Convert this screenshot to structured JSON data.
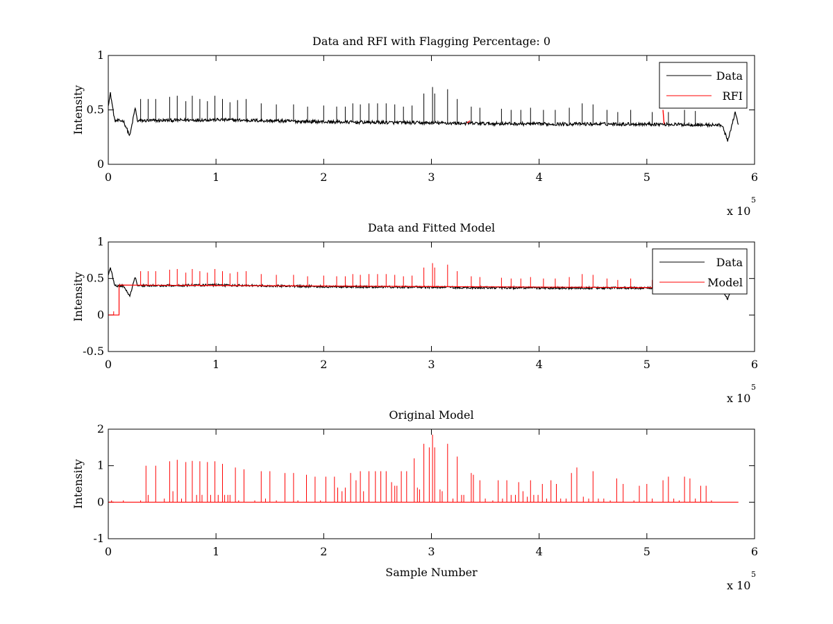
{
  "chart_data": [
    {
      "type": "line",
      "title": "Data and RFI with Flagging Percentage: 0",
      "xlabel": "",
      "ylabel": "Intensity",
      "xlim": [
        0,
        600000
      ],
      "ylim": [
        0,
        1
      ],
      "xticks": [
        0,
        1,
        2,
        3,
        4,
        5,
        6
      ],
      "yticks": [
        "0",
        "0.5",
        "1"
      ],
      "x_multiplier": "x 10",
      "x_exponent": "5",
      "legend": "top-right",
      "grid": false,
      "series": [
        {
          "name": "Data",
          "color": "#000000",
          "baseline": [
            [
              0,
              0.55
            ],
            [
              2000,
              0.65
            ],
            [
              6000,
              0.4
            ],
            [
              14000,
              0.4
            ],
            [
              20000,
              0.26
            ],
            [
              25000,
              0.52
            ],
            [
              27000,
              0.4
            ],
            [
              100000,
              0.41
            ],
            [
              200000,
              0.39
            ],
            [
              300000,
              0.38
            ],
            [
              400000,
              0.37
            ],
            [
              500000,
              0.37
            ],
            [
              570000,
              0.36
            ],
            [
              575000,
              0.21
            ],
            [
              582000,
              0.48
            ],
            [
              585000,
              0.36
            ]
          ],
          "spikes": [
            [
              30000,
              0.6
            ],
            [
              37000,
              0.6
            ],
            [
              44000,
              0.6
            ],
            [
              57000,
              0.62
            ],
            [
              64000,
              0.63
            ],
            [
              72000,
              0.58
            ],
            [
              78000,
              0.63
            ],
            [
              85000,
              0.6
            ],
            [
              92000,
              0.58
            ],
            [
              99000,
              0.63
            ],
            [
              106000,
              0.6
            ],
            [
              113000,
              0.57
            ],
            [
              120000,
              0.59
            ],
            [
              128000,
              0.6
            ],
            [
              142000,
              0.56
            ],
            [
              156000,
              0.55
            ],
            [
              172000,
              0.55
            ],
            [
              185000,
              0.53
            ],
            [
              200000,
              0.54
            ],
            [
              212000,
              0.53
            ],
            [
              220000,
              0.53
            ],
            [
              227000,
              0.56
            ],
            [
              234000,
              0.55
            ],
            [
              242000,
              0.56
            ],
            [
              250000,
              0.56
            ],
            [
              258000,
              0.56
            ],
            [
              266000,
              0.55
            ],
            [
              274000,
              0.53
            ],
            [
              282000,
              0.54
            ],
            [
              293000,
              0.65
            ],
            [
              301000,
              0.71
            ],
            [
              303000,
              0.65
            ],
            [
              315000,
              0.69
            ],
            [
              324000,
              0.6
            ],
            [
              337000,
              0.53
            ],
            [
              345000,
              0.52
            ],
            [
              365000,
              0.51
            ],
            [
              374000,
              0.5
            ],
            [
              383000,
              0.5
            ],
            [
              392000,
              0.52
            ],
            [
              404000,
              0.5
            ],
            [
              415000,
              0.5
            ],
            [
              428000,
              0.52
            ],
            [
              440000,
              0.56
            ],
            [
              450000,
              0.55
            ],
            [
              463000,
              0.5
            ],
            [
              473000,
              0.48
            ],
            [
              485000,
              0.5
            ],
            [
              505000,
              0.48
            ],
            [
              520000,
              0.48
            ],
            [
              535000,
              0.5
            ],
            [
              545000,
              0.49
            ]
          ]
        },
        {
          "name": "RFI",
          "color": "#ff0000",
          "segments": [
            [
              333000,
              0.38,
              336000,
              0.4
            ],
            [
              515000,
              0.5,
              516000,
              0.37
            ]
          ]
        }
      ]
    },
    {
      "type": "line",
      "title": "Data and Fitted Model",
      "xlabel": "",
      "ylabel": "Intensity",
      "xlim": [
        0,
        600000
      ],
      "ylim": [
        -0.5,
        1
      ],
      "xticks": [
        0,
        1,
        2,
        3,
        4,
        5,
        6
      ],
      "yticks": [
        "-0.5",
        "0",
        "0.5",
        "1"
      ],
      "x_multiplier": "x 10",
      "x_exponent": "5",
      "legend": "top-right",
      "grid": false,
      "series": [
        {
          "name": "Data",
          "color": "#000000"
        },
        {
          "name": "Model",
          "color": "#ff0000",
          "step": [
            [
              0,
              0.0
            ],
            [
              10000,
              0.0
            ],
            [
              10000,
              0.41
            ],
            [
              585000,
              0.37
            ]
          ]
        }
      ]
    },
    {
      "type": "line",
      "title": "Original Model",
      "xlabel": "Sample Number",
      "ylabel": "Intensity",
      "xlim": [
        0,
        600000
      ],
      "ylim": [
        -1,
        2
      ],
      "xticks": [
        0,
        1,
        2,
        3,
        4,
        5,
        6
      ],
      "yticks": [
        "-1",
        "0",
        "1",
        "2"
      ],
      "x_multiplier": "x 10",
      "x_exponent": "5",
      "grid": false,
      "series": [
        {
          "color": "#ff0000",
          "range": [
            0,
            585000
          ],
          "spikes": [
            [
              3000,
              0.05
            ],
            [
              14000,
              0.05
            ],
            [
              30000,
              0.05
            ],
            [
              35000,
              1.0
            ],
            [
              37000,
              0.2
            ],
            [
              44000,
              1.0
            ],
            [
              52000,
              0.1
            ],
            [
              57000,
              1.12
            ],
            [
              60000,
              0.3
            ],
            [
              64000,
              1.16
            ],
            [
              68000,
              0.1
            ],
            [
              72000,
              1.1
            ],
            [
              78000,
              1.13
            ],
            [
              82000,
              0.2
            ],
            [
              85000,
              1.12
            ],
            [
              87000,
              0.2
            ],
            [
              92000,
              1.1
            ],
            [
              95000,
              0.2
            ],
            [
              99000,
              1.12
            ],
            [
              102000,
              0.2
            ],
            [
              106000,
              1.05
            ],
            [
              108000,
              0.2
            ],
            [
              111000,
              0.2
            ],
            [
              113000,
              0.2
            ],
            [
              118000,
              0.95
            ],
            [
              121000,
              0.05
            ],
            [
              126000,
              0.9
            ],
            [
              136000,
              0.05
            ],
            [
              142000,
              0.85
            ],
            [
              146000,
              0.1
            ],
            [
              150000,
              0.85
            ],
            [
              156000,
              0.05
            ],
            [
              164000,
              0.8
            ],
            [
              172000,
              0.8
            ],
            [
              176000,
              0.05
            ],
            [
              184000,
              0.75
            ],
            [
              192000,
              0.7
            ],
            [
              197000,
              0.05
            ],
            [
              202000,
              0.7
            ],
            [
              210000,
              0.7
            ],
            [
              213000,
              0.4
            ],
            [
              217000,
              0.3
            ],
            [
              220000,
              0.4
            ],
            [
              225000,
              0.8
            ],
            [
              230000,
              0.6
            ],
            [
              234000,
              0.85
            ],
            [
              237000,
              0.3
            ],
            [
              242000,
              0.85
            ],
            [
              248000,
              0.85
            ],
            [
              253000,
              0.85
            ],
            [
              258000,
              0.85
            ],
            [
              263000,
              0.55
            ],
            [
              266000,
              0.45
            ],
            [
              268000,
              0.45
            ],
            [
              272000,
              0.85
            ],
            [
              277000,
              0.85
            ],
            [
              284000,
              1.2
            ],
            [
              287000,
              0.4
            ],
            [
              289000,
              0.35
            ],
            [
              293000,
              1.6
            ],
            [
              298000,
              1.5
            ],
            [
              301000,
              1.85
            ],
            [
              303000,
              1.5
            ],
            [
              308000,
              0.35
            ],
            [
              310000,
              0.3
            ],
            [
              315000,
              1.6
            ],
            [
              320000,
              0.1
            ],
            [
              324000,
              1.25
            ],
            [
              328000,
              0.2
            ],
            [
              330000,
              0.2
            ],
            [
              337000,
              0.8
            ],
            [
              339000,
              0.75
            ],
            [
              345000,
              0.6
            ],
            [
              350000,
              0.1
            ],
            [
              357000,
              0.05
            ],
            [
              362000,
              0.6
            ],
            [
              366000,
              0.1
            ],
            [
              370000,
              0.6
            ],
            [
              374000,
              0.2
            ],
            [
              378000,
              0.2
            ],
            [
              381000,
              0.55
            ],
            [
              385000,
              0.3
            ],
            [
              389000,
              0.15
            ],
            [
              392000,
              0.6
            ],
            [
              395000,
              0.2
            ],
            [
              399000,
              0.2
            ],
            [
              403000,
              0.5
            ],
            [
              407000,
              0.1
            ],
            [
              411000,
              0.6
            ],
            [
              416000,
              0.5
            ],
            [
              420000,
              0.1
            ],
            [
              425000,
              0.1
            ],
            [
              430000,
              0.8
            ],
            [
              435000,
              0.95
            ],
            [
              441000,
              0.15
            ],
            [
              446000,
              0.1
            ],
            [
              450000,
              0.85
            ],
            [
              455000,
              0.1
            ],
            [
              460000,
              0.1
            ],
            [
              466000,
              0.05
            ],
            [
              472000,
              0.65
            ],
            [
              478000,
              0.5
            ],
            [
              488000,
              0.05
            ],
            [
              493000,
              0.45
            ],
            [
              500000,
              0.5
            ],
            [
              505000,
              0.1
            ],
            [
              515000,
              0.6
            ],
            [
              520000,
              0.7
            ],
            [
              525000,
              0.1
            ],
            [
              530000,
              0.05
            ],
            [
              535000,
              0.7
            ],
            [
              540000,
              0.65
            ],
            [
              545000,
              0.1
            ],
            [
              550000,
              0.45
            ],
            [
              555000,
              0.45
            ],
            [
              560000,
              0.05
            ]
          ]
        }
      ]
    }
  ]
}
